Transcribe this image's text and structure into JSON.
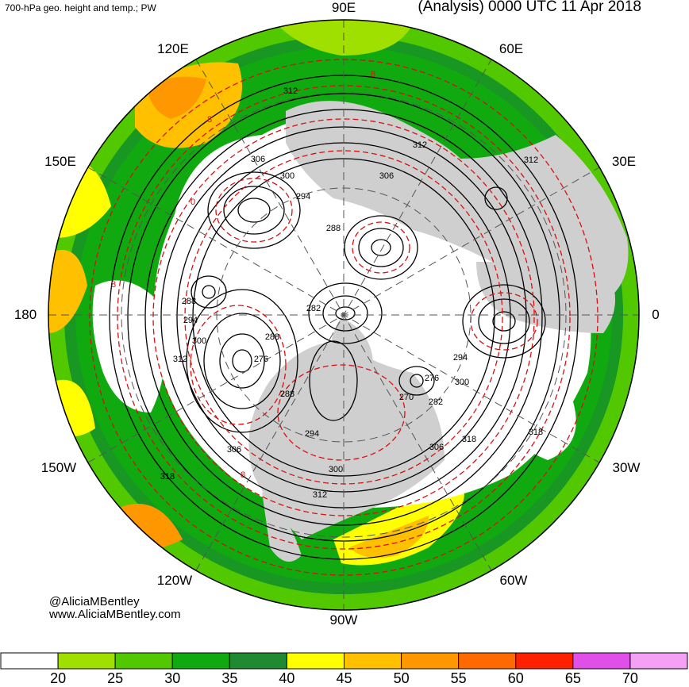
{
  "header": {
    "left_title": "700-hPa geo. height and temp.; PW",
    "right_title": "(Analysis) 0000 UTC 11 Apr 2018"
  },
  "longitude_labels": {
    "lon_90e": "90E",
    "lon_60e": "60E",
    "lon_30e": "30E",
    "lon_0": "0",
    "lon_30w": "30W",
    "lon_60w": "60W",
    "lon_90w": "90W",
    "lon_120w": "120W",
    "lon_150w": "150W",
    "lon_180": "180",
    "lon_150e": "150E",
    "lon_120e": "120E"
  },
  "credits": {
    "twitter": "@AliciaMBentley",
    "website": "www.AliciaMBentley.com"
  },
  "colorbar": {
    "ticks": [
      "20",
      "25",
      "30",
      "35",
      "40",
      "45",
      "50",
      "55",
      "60",
      "65",
      "70"
    ],
    "colors": [
      "#ffffff",
      "#a0e000",
      "#52c800",
      "#10aa10",
      "#1f8a30",
      "#ffff00",
      "#ffc000",
      "#ff9800",
      "#ff6a00",
      "#ff2000",
      "#e050e8",
      "#f4a0f4"
    ]
  },
  "contour_labels": {
    "height": [
      "312",
      "306",
      "300",
      "294",
      "288",
      "282",
      "276",
      "270",
      "276",
      "282",
      "288",
      "294",
      "300",
      "306",
      "312",
      "318",
      "318",
      "318",
      "312",
      "288",
      "294",
      "300",
      "312",
      "306",
      "288",
      "294",
      "300",
      "306",
      "312"
    ],
    "temperature": [
      "8",
      "8",
      "0",
      "8",
      "8"
    ]
  }
}
